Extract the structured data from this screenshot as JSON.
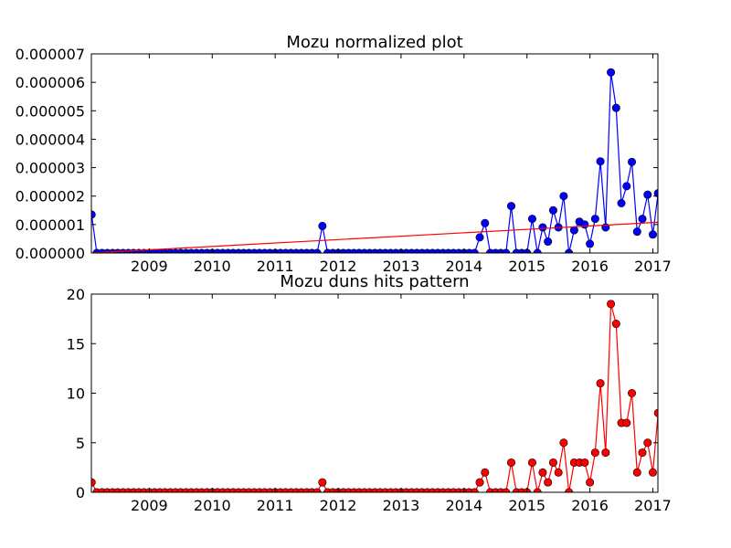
{
  "chart_data": [
    {
      "type": "line",
      "title": "Mozu normalized plot",
      "xlabel": "",
      "ylabel": "",
      "xlim": [
        2008.08,
        2017.08
      ],
      "ylim": [
        0,
        7e-06
      ],
      "x_ticks": [
        2009,
        2010,
        2011,
        2012,
        2013,
        2014,
        2015,
        2016,
        2017
      ],
      "x_tick_labels": [
        "2009",
        "2010",
        "2011",
        "2012",
        "2013",
        "2014",
        "2015",
        "2016",
        "2017"
      ],
      "y_ticks": [
        0,
        1e-06,
        2e-06,
        3e-06,
        4e-06,
        5e-06,
        6e-06,
        7e-06
      ],
      "y_tick_labels": [
        "0.000000",
        "0.000001",
        "0.000002",
        "0.000003",
        "0.000004",
        "0.000005",
        "0.000006",
        "0.000007"
      ],
      "grid": false,
      "series": [
        {
          "color": "#0000ff",
          "marker": "circle",
          "points": [
            [
              2008.08,
              1.35e-06
            ],
            [
              2011.75,
              9.5e-07
            ],
            [
              2014.25,
              5.5e-07
            ],
            [
              2014.33,
              1.05e-06
            ],
            [
              2014.75,
              1.65e-06
            ],
            [
              2015.08,
              1.2e-06
            ],
            [
              2015.25,
              9e-07
            ],
            [
              2015.33,
              4e-07
            ],
            [
              2015.42,
              1.5e-06
            ],
            [
              2015.5,
              9e-07
            ],
            [
              2015.58,
              2e-06
            ],
            [
              2015.67,
              0.0
            ],
            [
              2015.75,
              8e-07
            ],
            [
              2015.83,
              1.1e-06
            ],
            [
              2015.92,
              1e-06
            ],
            [
              2016.0,
              3.2e-07
            ],
            [
              2016.08,
              1.2e-06
            ],
            [
              2016.17,
              3.22e-06
            ],
            [
              2016.25,
              9e-07
            ],
            [
              2016.33,
              6.35e-06
            ],
            [
              2016.42,
              5.1e-06
            ],
            [
              2016.5,
              1.75e-06
            ],
            [
              2016.58,
              2.35e-06
            ],
            [
              2016.67,
              3.2e-06
            ],
            [
              2016.75,
              7.5e-07
            ],
            [
              2016.83,
              1.2e-06
            ],
            [
              2016.92,
              2.05e-06
            ],
            [
              2017.0,
              6.5e-07
            ],
            [
              2017.08,
              2.1e-06
            ]
          ]
        },
        {
          "color": "#ff0000",
          "marker": "none",
          "points": [
            [
              2008.08,
              0.0
            ],
            [
              2017.08,
              1.08e-06
            ]
          ]
        }
      ]
    },
    {
      "type": "line",
      "title": "Mozu duns hits pattern",
      "xlabel": "",
      "ylabel": "",
      "xlim": [
        2008.08,
        2017.08
      ],
      "ylim": [
        0,
        20
      ],
      "x_ticks": [
        2009,
        2010,
        2011,
        2012,
        2013,
        2014,
        2015,
        2016,
        2017
      ],
      "x_tick_labels": [
        "2009",
        "2010",
        "2011",
        "2012",
        "2013",
        "2014",
        "2015",
        "2016",
        "2017"
      ],
      "y_ticks": [
        0,
        5,
        10,
        15,
        20
      ],
      "y_tick_labels": [
        "0",
        "5",
        "10",
        "15",
        "20"
      ],
      "grid": false,
      "series": [
        {
          "color": "#ff0000",
          "marker": "circle",
          "points": [
            [
              2008.08,
              1
            ],
            [
              2011.75,
              1
            ],
            [
              2014.25,
              1
            ],
            [
              2014.33,
              2
            ],
            [
              2014.75,
              3
            ],
            [
              2015.08,
              3
            ],
            [
              2015.25,
              2
            ],
            [
              2015.33,
              1
            ],
            [
              2015.42,
              3
            ],
            [
              2015.5,
              2
            ],
            [
              2015.58,
              5
            ],
            [
              2015.67,
              0
            ],
            [
              2015.75,
              3
            ],
            [
              2015.83,
              3
            ],
            [
              2015.92,
              3
            ],
            [
              2016.0,
              1
            ],
            [
              2016.08,
              4
            ],
            [
              2016.17,
              11
            ],
            [
              2016.25,
              4
            ],
            [
              2016.33,
              19
            ],
            [
              2016.42,
              17
            ],
            [
              2016.5,
              7
            ],
            [
              2016.58,
              7
            ],
            [
              2016.67,
              10
            ],
            [
              2016.75,
              2
            ],
            [
              2016.83,
              4
            ],
            [
              2016.92,
              5
            ],
            [
              2017.0,
              2
            ],
            [
              2017.08,
              8
            ]
          ]
        }
      ]
    }
  ]
}
